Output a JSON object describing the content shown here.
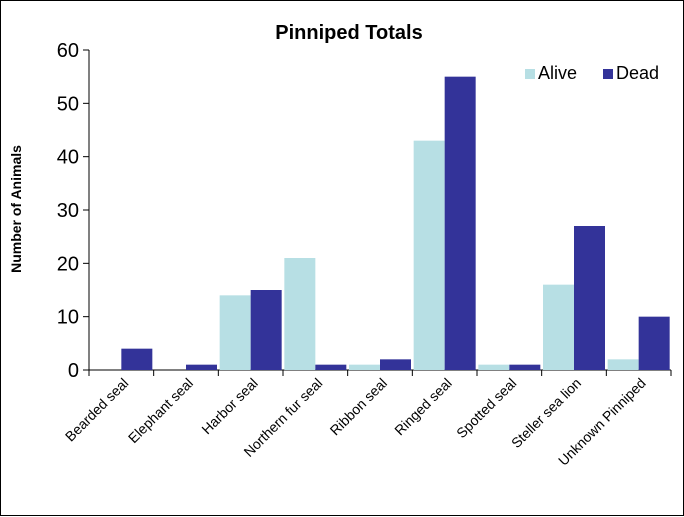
{
  "chart_data": {
    "type": "bar",
    "title": "Pinniped Totals",
    "xlabel": "",
    "ylabel": "Number of Animals",
    "ylim": [
      0,
      60
    ],
    "yticks": [
      0,
      10,
      20,
      30,
      40,
      50,
      60
    ],
    "grid": false,
    "legend_position": "top-right",
    "categories": [
      "Bearded seal",
      "Elephant seal",
      "Harbor seal",
      "Northern fur seal",
      "Ribbon seal",
      "Ringed seal",
      "Spotted seal",
      "Steller sea lion",
      "Unknown Pinniped"
    ],
    "series": [
      {
        "name": "Alive",
        "color": "#b7dfe4",
        "values": [
          0,
          0,
          14,
          21,
          1,
          43,
          1,
          16,
          2
        ]
      },
      {
        "name": "Dead",
        "color": "#333399",
        "values": [
          4,
          1,
          15,
          1,
          2,
          55,
          1,
          27,
          10
        ]
      }
    ]
  }
}
